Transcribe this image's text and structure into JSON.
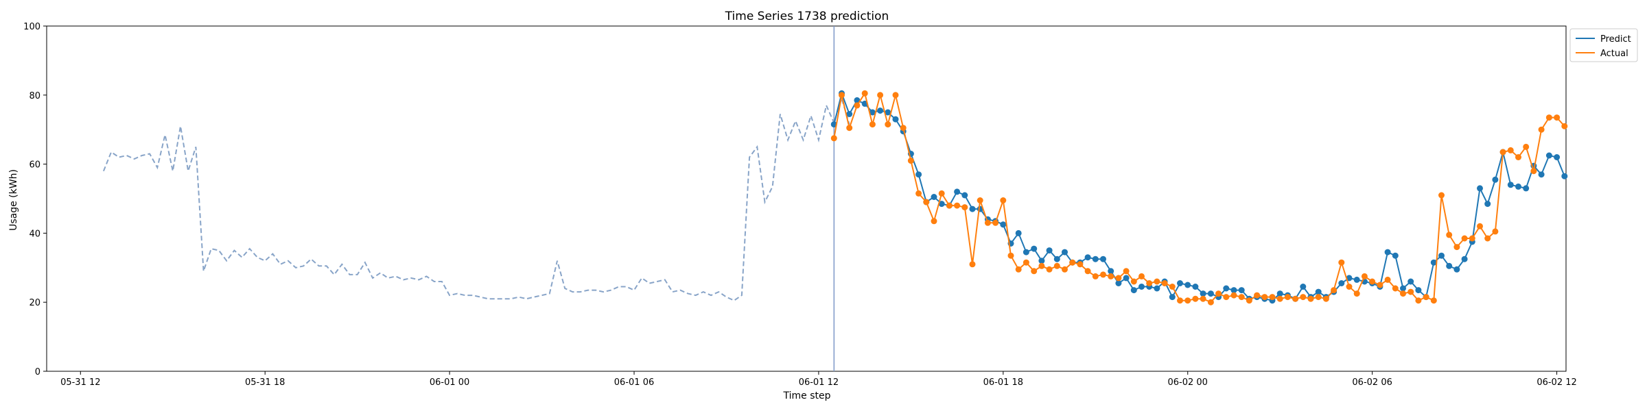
{
  "chart_data": {
    "type": "line",
    "title": "Time Series 1738 prediction",
    "xlabel": "Time step",
    "ylabel": "Usage (kWh)",
    "ylim": [
      0,
      100
    ],
    "yticks": [
      0,
      20,
      40,
      60,
      80,
      100
    ],
    "xlim_hours": [
      -1.1,
      48.3
    ],
    "xticks": [
      {
        "h": 0,
        "label": "05-31 12"
      },
      {
        "h": 6,
        "label": "05-31 18"
      },
      {
        "h": 12,
        "label": "06-01 00"
      },
      {
        "h": 18,
        "label": "06-01 06"
      },
      {
        "h": 24,
        "label": "06-01 12"
      },
      {
        "h": 30,
        "label": "06-01 18"
      },
      {
        "h": 36,
        "label": "06-02 00"
      },
      {
        "h": 42,
        "label": "06-02 06"
      },
      {
        "h": 48,
        "label": "06-02 12"
      }
    ],
    "x_start": "05-31 12:45",
    "x_step_minutes": 15,
    "forecast_start": "06-01 12:30",
    "legend_position": "upper right outside",
    "colors": {
      "history": "#88a4c8",
      "predict": "#1f77b4",
      "actual": "#ff7f0e",
      "marker_line": "#7d98c8"
    },
    "series": [
      {
        "name": "history",
        "style": "dashed",
        "values": [
          58.0,
          63.5,
          62.0,
          62.5,
          61.5,
          62.5,
          63.0,
          59.0,
          68.5,
          58.0,
          71.0,
          58.0,
          65.0,
          29.0,
          35.5,
          35.0,
          32.0,
          35.0,
          33.0,
          35.5,
          33.0,
          32.0,
          34.0,
          31.0,
          32.0,
          30.0,
          30.5,
          32.5,
          30.5,
          30.5,
          28.0,
          31.0,
          28.0,
          28.0,
          31.5,
          27.0,
          28.5,
          27.0,
          27.5,
          26.5,
          27.0,
          26.5,
          27.5,
          26.0,
          26.0,
          22.0,
          22.5,
          22.0,
          22.0,
          21.5,
          21.0,
          21.0,
          21.0,
          21.0,
          21.5,
          21.0,
          21.5,
          22.0,
          22.5,
          32.0,
          24.0,
          23.0,
          23.0,
          23.5,
          23.5,
          23.0,
          23.5,
          24.5,
          24.5,
          23.5,
          27.0,
          25.5,
          26.0,
          26.5,
          23.0,
          23.5,
          22.5,
          22.0,
          23.0,
          22.0,
          23.0,
          21.5,
          20.5,
          22.0,
          62.0,
          65.0,
          49.0,
          53.5,
          74.5,
          67.0,
          72.5,
          67.0,
          74.0,
          67.0,
          77.0,
          72.0,
          79.0,
          71.5
        ]
      },
      {
        "name": "Predict",
        "style": "solid-marker",
        "values": [
          71.5,
          80.5,
          74.5,
          78.5,
          77.5,
          75.0,
          75.5,
          75.0,
          73.0,
          69.5,
          63.0,
          57.0,
          49.0,
          50.5,
          48.5,
          48.0,
          52.0,
          51.0,
          47.0,
          47.0,
          44.0,
          43.5,
          42.5,
          37.0,
          40.0,
          34.5,
          35.5,
          32.0,
          35.0,
          32.5,
          34.5,
          31.5,
          31.5,
          33.0,
          32.5,
          32.5,
          29.0,
          25.5,
          27.0,
          23.5,
          24.5,
          24.5,
          24.0,
          26.0,
          21.5,
          25.5,
          25.0,
          24.5,
          22.5,
          22.5,
          21.5,
          24.0,
          23.5,
          23.5,
          21.0,
          21.5,
          21.0,
          20.5,
          22.5,
          22.0,
          21.0,
          24.5,
          21.5,
          23.0,
          21.5,
          23.0,
          25.5,
          27.0,
          26.5,
          26.0,
          25.5,
          24.5,
          34.5,
          33.5,
          24.0,
          26.0,
          23.5,
          21.5,
          31.5,
          33.5,
          30.5,
          29.5,
          32.5,
          37.5,
          53.0,
          48.5,
          55.5,
          63.5,
          54.0,
          53.5,
          53.0,
          59.5,
          57.0,
          62.5,
          62.0,
          56.5
        ]
      },
      {
        "name": "Actual",
        "style": "solid-marker",
        "values": [
          67.5,
          80.0,
          70.5,
          77.0,
          80.5,
          71.5,
          80.0,
          71.5,
          80.0,
          70.5,
          61.0,
          51.5,
          49.0,
          43.5,
          51.5,
          48.0,
          48.0,
          47.5,
          31.0,
          49.5,
          43.0,
          43.0,
          49.5,
          33.5,
          29.5,
          31.5,
          29.0,
          30.5,
          29.5,
          30.5,
          29.5,
          31.5,
          31.0,
          29.0,
          27.5,
          28.0,
          27.5,
          27.0,
          29.0,
          26.0,
          27.5,
          25.5,
          26.0,
          25.5,
          24.5,
          20.5,
          20.5,
          21.0,
          21.0,
          20.0,
          22.5,
          21.5,
          22.0,
          21.5,
          20.5,
          22.0,
          21.5,
          21.5,
          21.0,
          21.5,
          21.0,
          21.5,
          21.0,
          21.5,
          21.0,
          23.5,
          31.5,
          24.5,
          22.5,
          27.5,
          26.0,
          25.0,
          26.5,
          24.0,
          22.5,
          23.0,
          20.5,
          21.5,
          20.5,
          51.0,
          39.5,
          36.0,
          38.5,
          38.5,
          42.0,
          38.5,
          40.5,
          63.5,
          64.0,
          62.0,
          65.0,
          58.0,
          70.0,
          73.5,
          73.5,
          71.0
        ]
      }
    ]
  }
}
